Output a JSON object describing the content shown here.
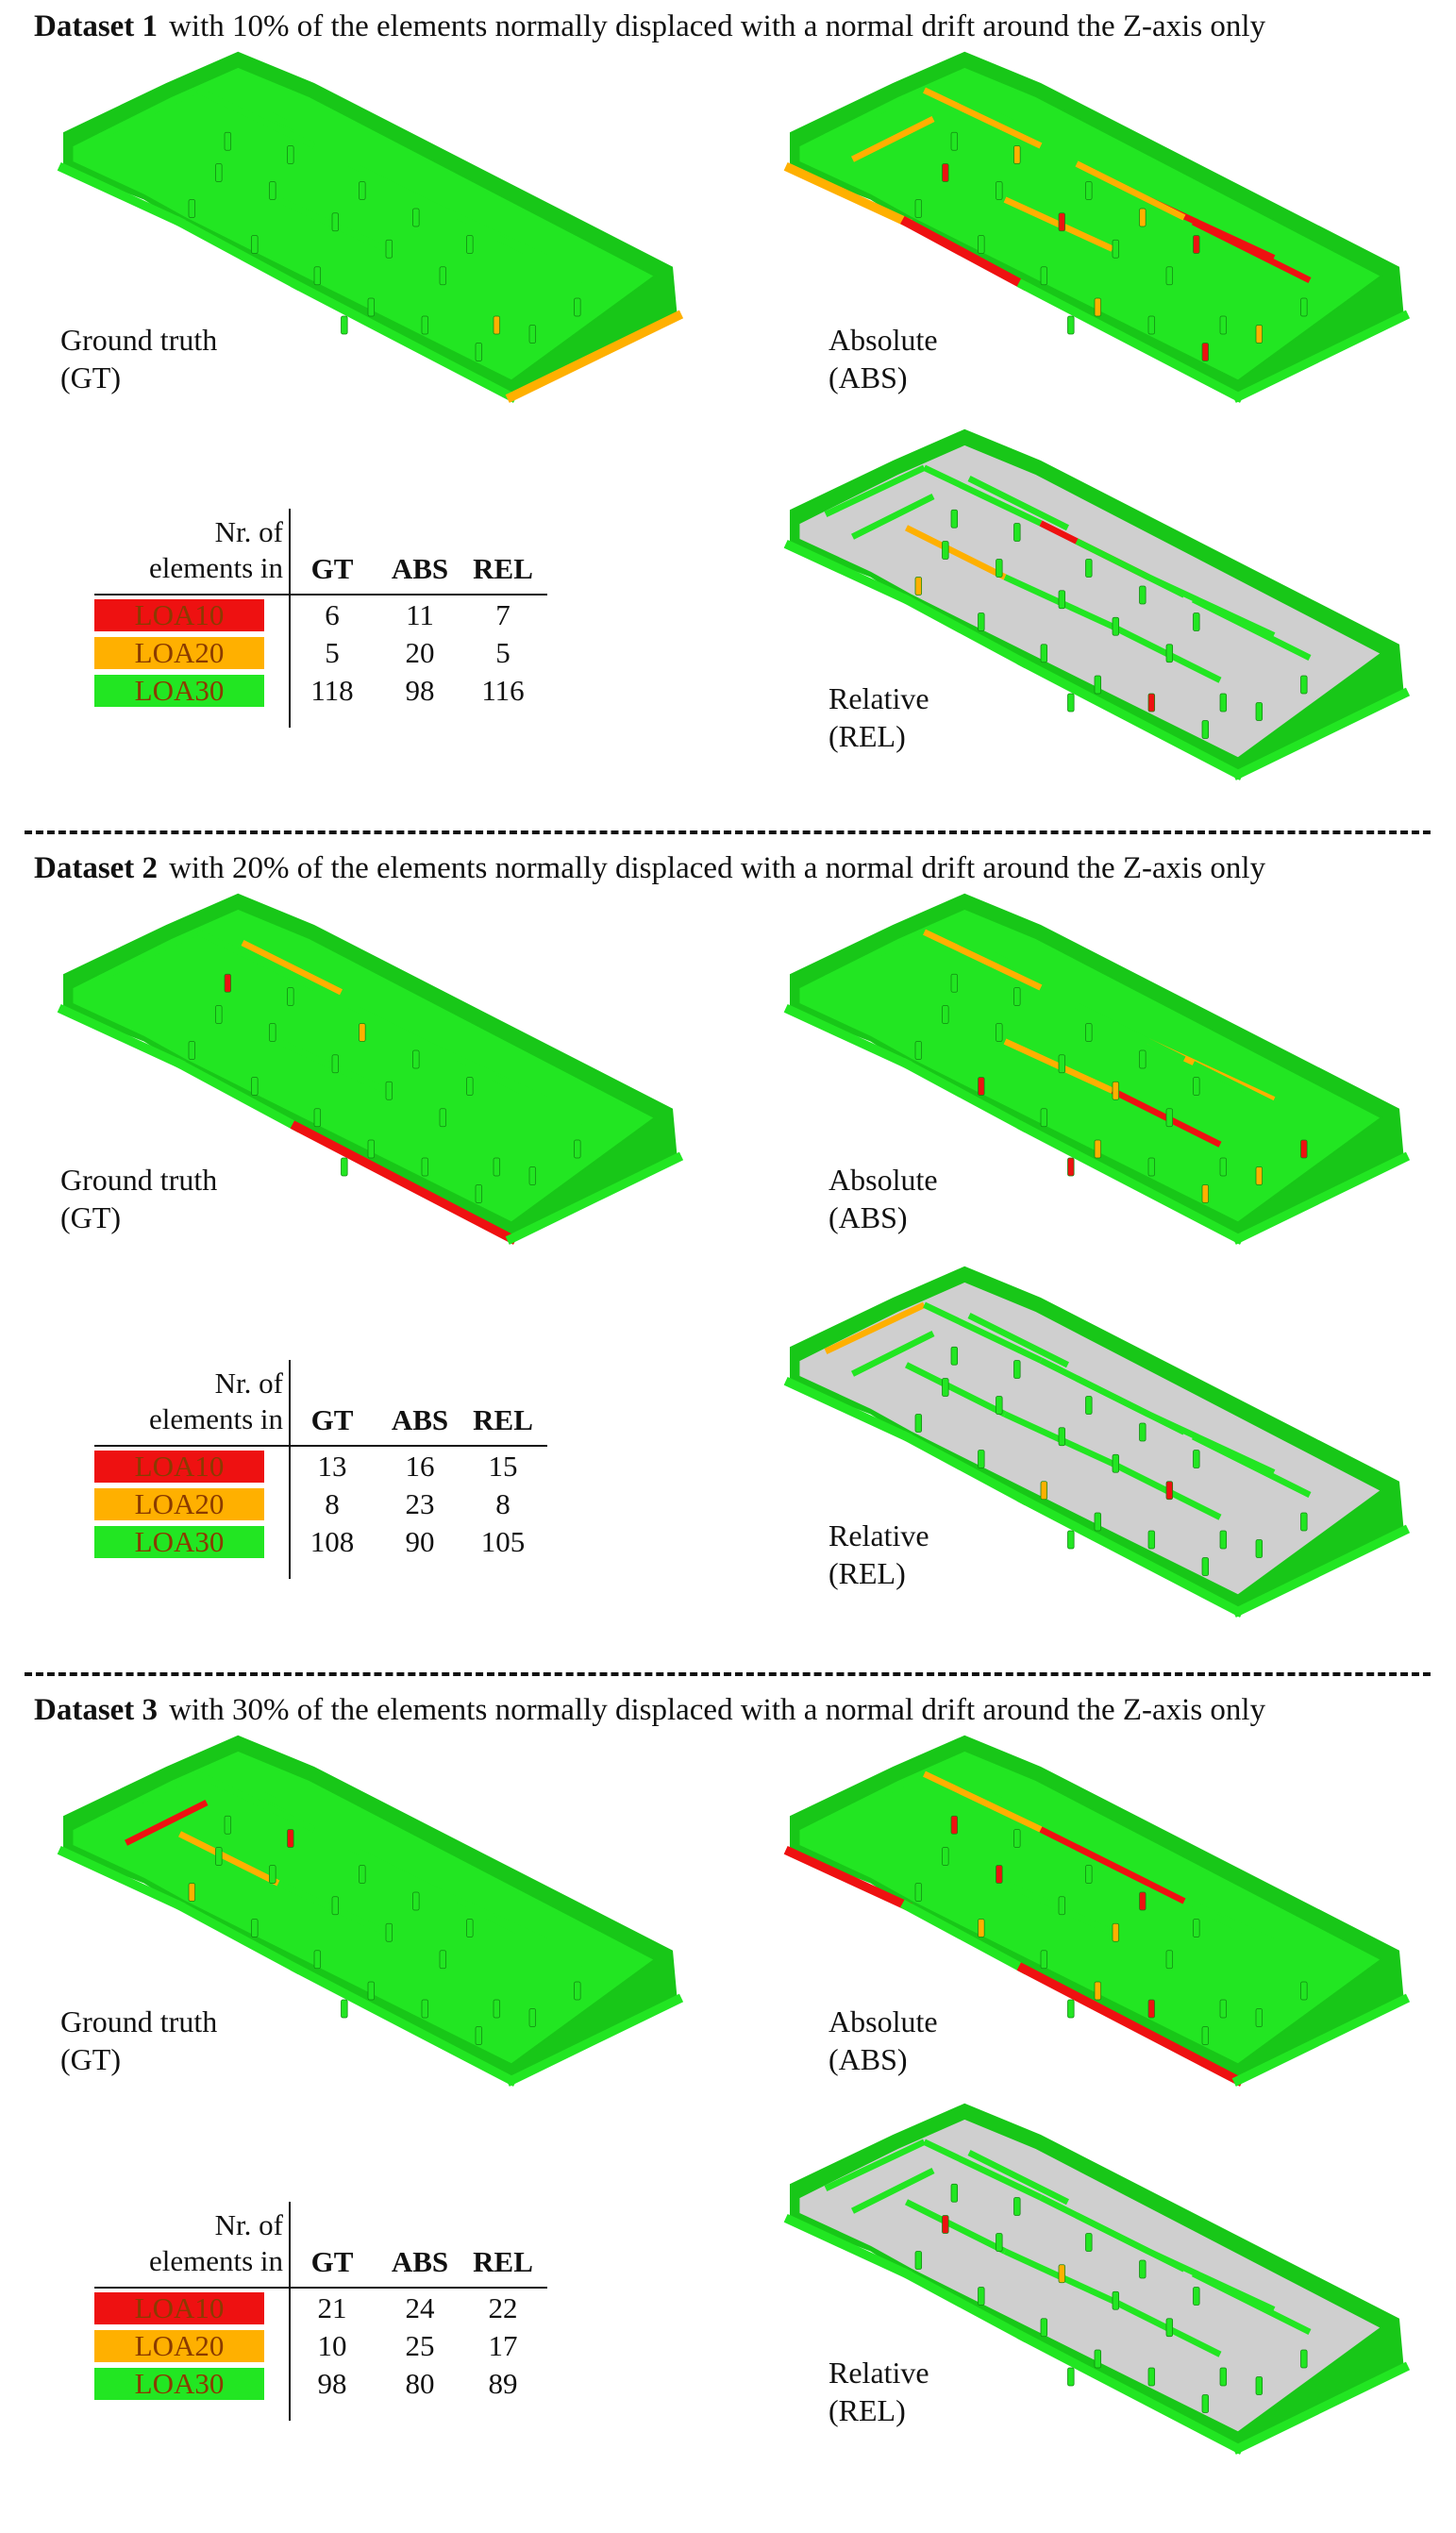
{
  "colors": {
    "loa10": "#ee1111",
    "loa20": "#ffb000",
    "loa30": "#22e622",
    "floor_grey": "#cfcfcf"
  },
  "panels": [
    {
      "title_bold": "Dataset 1",
      "title_rest": "with 10% of the elements normally displaced with a normal drift around the Z-axis only",
      "gt_label": [
        "Ground truth",
        "(GT)"
      ],
      "abs_label": [
        "Absolute",
        "(ABS)"
      ],
      "rel_label": [
        "Relative",
        "(REL)"
      ],
      "table": {
        "header": [
          "Nr. of",
          "elements in"
        ],
        "columns": [
          "GT",
          "ABS",
          "REL"
        ],
        "rows": [
          {
            "label": "LOA10",
            "values": [
              "6",
              "11",
              "7"
            ]
          },
          {
            "label": "LOA20",
            "values": [
              "5",
              "20",
              "5"
            ]
          },
          {
            "label": "LOA30",
            "values": [
              "118",
              "98",
              "116"
            ]
          }
        ]
      }
    },
    {
      "title_bold": "Dataset 2",
      "title_rest": "with 20% of the elements normally displaced with a normal drift around the Z-axis only",
      "gt_label": [
        "Ground truth",
        "(GT)"
      ],
      "abs_label": [
        "Absolute",
        "(ABS)"
      ],
      "rel_label": [
        "Relative",
        "(REL)"
      ],
      "table": {
        "header": [
          "Nr. of",
          "elements in"
        ],
        "columns": [
          "GT",
          "ABS",
          "REL"
        ],
        "rows": [
          {
            "label": "LOA10",
            "values": [
              "13",
              "16",
              "15"
            ]
          },
          {
            "label": "LOA20",
            "values": [
              "8",
              "23",
              "8"
            ]
          },
          {
            "label": "LOA30",
            "values": [
              "108",
              "90",
              "105"
            ]
          }
        ]
      }
    },
    {
      "title_bold": "Dataset 3",
      "title_rest": "with 30% of the elements normally displaced with a normal drift around the Z-axis only",
      "gt_label": [
        "Ground truth",
        "(GT)"
      ],
      "abs_label": [
        "Absolute",
        "(ABS)"
      ],
      "rel_label": [
        "Relative",
        "(REL)"
      ],
      "table": {
        "header": [
          "Nr. of",
          "elements in"
        ],
        "columns": [
          "GT",
          "ABS",
          "REL"
        ],
        "rows": [
          {
            "label": "LOA10",
            "values": [
              "21",
              "24",
              "22"
            ]
          },
          {
            "label": "LOA20",
            "values": [
              "10",
              "25",
              "17"
            ]
          },
          {
            "label": "LOA30",
            "values": [
              "98",
              "80",
              "89"
            ]
          }
        ]
      }
    }
  ]
}
